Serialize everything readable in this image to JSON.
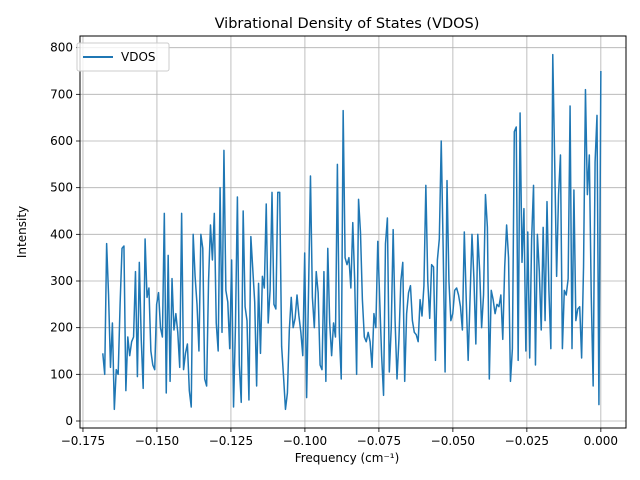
{
  "chart_data": {
    "type": "line",
    "title": "Vibrational Density of States (VDOS)",
    "xlabel": "Frequency (cm⁻¹)",
    "ylabel": "Intensity",
    "xlim": [
      -0.176,
      0.0085
    ],
    "ylim": [
      -15,
      825
    ],
    "xticks": [
      -0.175,
      -0.15,
      -0.125,
      -0.1,
      -0.075,
      -0.05,
      -0.025,
      0.0
    ],
    "xtick_labels": [
      "−0.175",
      "−0.150",
      "−0.125",
      "−0.100",
      "−0.075",
      "−0.050",
      "−0.025",
      "0.000"
    ],
    "yticks": [
      0,
      100,
      200,
      300,
      400,
      500,
      600,
      700,
      800
    ],
    "ytick_labels": [
      "0",
      "100",
      "200",
      "300",
      "400",
      "500",
      "600",
      "700",
      "800"
    ],
    "grid": true,
    "legend": {
      "location": "upper-left",
      "entries": [
        "VDOS"
      ]
    },
    "series": [
      {
        "name": "VDOS",
        "color": "#1f77b4",
        "x_start": -0.1683,
        "x_end": 0.0,
        "values": [
          145,
          100,
          380,
          270,
          115,
          210,
          25,
          110,
          100,
          250,
          370,
          375,
          65,
          180,
          140,
          170,
          180,
          320,
          95,
          340,
          175,
          70,
          390,
          265,
          285,
          150,
          120,
          110,
          250,
          275,
          200,
          180,
          445,
          60,
          355,
          85,
          305,
          195,
          230,
          190,
          115,
          445,
          110,
          145,
          165,
          65,
          30,
          400,
          310,
          250,
          150,
          400,
          370,
          90,
          75,
          300,
          420,
          345,
          445,
          210,
          150,
          500,
          190,
          580,
          280,
          255,
          155,
          345,
          30,
          205,
          480,
          120,
          40,
          450,
          245,
          215,
          45,
          395,
          325,
          255,
          75,
          295,
          145,
          310,
          285,
          465,
          210,
          280,
          490,
          250,
          240,
          490,
          490,
          160,
          95,
          25,
          60,
          195,
          265,
          200,
          220,
          270,
          225,
          190,
          140,
          360,
          50,
          280,
          525,
          265,
          200,
          320,
          275,
          120,
          110,
          320,
          85,
          370,
          210,
          140,
          210,
          180,
          550,
          190,
          90,
          665,
          350,
          335,
          350,
          285,
          425,
          300,
          100,
          475,
          405,
          260,
          180,
          170,
          190,
          170,
          115,
          230,
          200,
          385,
          260,
          140,
          55,
          380,
          435,
          105,
          200,
          410,
          215,
          90,
          175,
          300,
          340,
          85,
          230,
          275,
          290,
          215,
          190,
          185,
          170,
          260,
          225,
          290,
          505,
          300,
          220,
          335,
          330,
          130,
          345,
          390,
          600,
          370,
          105,
          515,
          300,
          215,
          230,
          280,
          285,
          270,
          245,
          195,
          405,
          260,
          130,
          265,
          400,
          305,
          165,
          400,
          320,
          200,
          270,
          485,
          415,
          90,
          280,
          260,
          230,
          250,
          245,
          270,
          175,
          330,
          420,
          350,
          85,
          155,
          620,
          630,
          130,
          660,
          340,
          455,
          150,
          405,
          135,
          390,
          505,
          120,
          400,
          320,
          195,
          415,
          215,
          470,
          280,
          155,
          785,
          555,
          310,
          485,
          570,
          155,
          280,
          270,
          305,
          675,
          155,
          495,
          215,
          240,
          245,
          135,
          330,
          710,
          485,
          570,
          270,
          75,
          555,
          655,
          35,
          750
        ]
      }
    ]
  }
}
